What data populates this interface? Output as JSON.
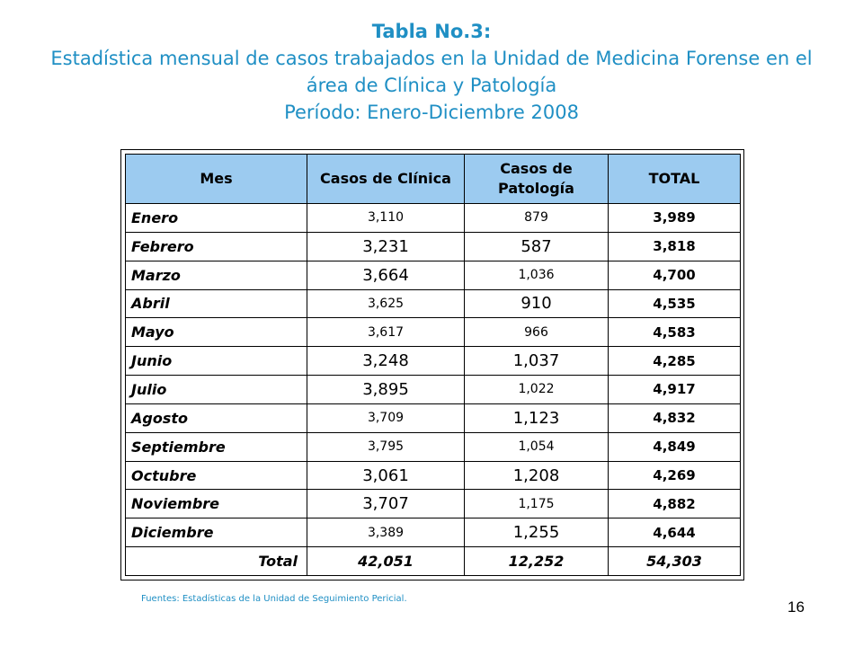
{
  "title": {
    "line1": "Tabla No.3:",
    "line2": "Estadística mensual de casos trabajados en la Unidad de Medicina Forense en el",
    "line3": "área de Clínica y Patología",
    "line4": "Período: Enero-Diciembre 2008"
  },
  "table": {
    "headers": [
      "Mes",
      "Casos de Clínica",
      "Casos de Patología",
      "TOTAL"
    ],
    "rows": [
      {
        "mes": "Enero",
        "clinica": "3,110",
        "patologia": "879",
        "total": "3,989"
      },
      {
        "mes": "Febrero",
        "clinica": "3,231",
        "patologia": "587",
        "total": "3,818"
      },
      {
        "mes": "Marzo",
        "clinica": "3,664",
        "patologia": "1,036",
        "total": "4,700"
      },
      {
        "mes": "Abril",
        "clinica": "3,625",
        "patologia": "910",
        "total": "4,535"
      },
      {
        "mes": "Mayo",
        "clinica": "3,617",
        "patologia": "966",
        "total": "4,583"
      },
      {
        "mes": "Junio",
        "clinica": "3,248",
        "patologia": "1,037",
        "total": "4,285"
      },
      {
        "mes": "Julio",
        "clinica": "3,895",
        "patologia": "1,022",
        "total": "4,917"
      },
      {
        "mes": "Agosto",
        "clinica": "3,709",
        "patologia": "1,123",
        "total": "4,832"
      },
      {
        "mes": "Septiembre",
        "clinica": "3,795",
        "patologia": "1,054",
        "total": "4,849"
      },
      {
        "mes": "Octubre",
        "clinica": "3,061",
        "patologia": "1,208",
        "total": "4,269"
      },
      {
        "mes": "Noviembre",
        "clinica": "3,707",
        "patologia": "1,175",
        "total": "4,882"
      },
      {
        "mes": "Diciembre",
        "clinica": "3,389",
        "patologia": "1,255",
        "total": "4,644"
      }
    ],
    "total_row": {
      "label": "Total",
      "clinica": "42,051",
      "patologia": "12,252",
      "total": "54,303"
    }
  },
  "source": "Fuentes: Estadísticas de la Unidad de Seguimiento Pericial.",
  "page_number": "16",
  "colors": {
    "title": "#1f8fc4",
    "header_fill": "#9ccbf0",
    "border": "#000000"
  }
}
